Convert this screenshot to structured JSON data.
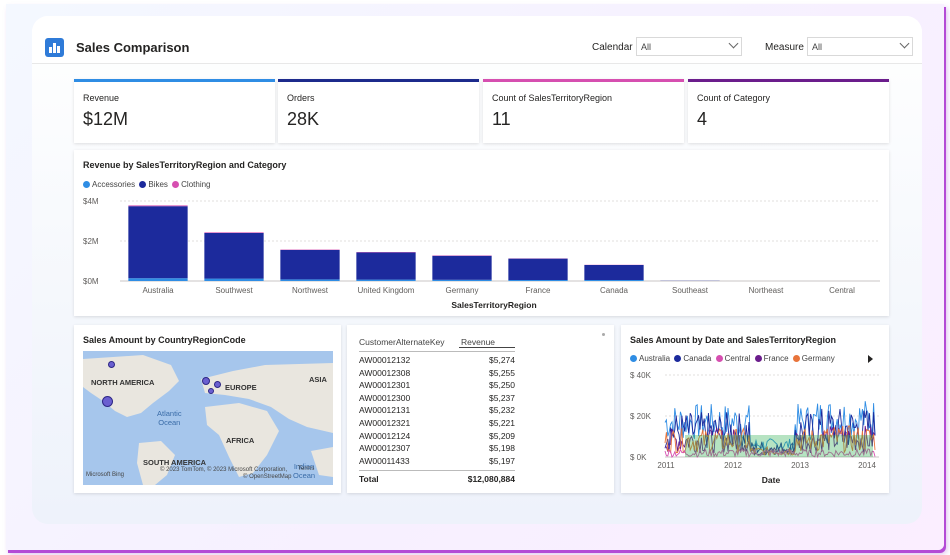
{
  "header": {
    "title": "Sales Comparison",
    "filters": [
      {
        "label": "Calendar",
        "value": "All"
      },
      {
        "label": "Measure",
        "value": "All"
      }
    ]
  },
  "kpis": [
    {
      "label": "Revenue",
      "value": "$12M",
      "color": "#2f8de4"
    },
    {
      "label": "Orders",
      "value": "28K",
      "color": "#1c2a8c"
    },
    {
      "label": "Count of SalesTerritoryRegion",
      "value": "11",
      "color": "#d64fb0"
    },
    {
      "label": "Count of Category",
      "value": "4",
      "color": "#6b1d8c"
    }
  ],
  "bar_chart": {
    "title": "Revenue by SalesTerritoryRegion and Category",
    "legend": [
      {
        "name": "Accessories",
        "color": "#2f8de4"
      },
      {
        "name": "Bikes",
        "color": "#1c2a9c"
      },
      {
        "name": "Clothing",
        "color": "#d64fb0"
      }
    ],
    "y_ticks": [
      "$4M",
      "$2M",
      "$0M"
    ],
    "xlabel": "SalesTerritoryRegion"
  },
  "map": {
    "title": "Sales Amount by CountryRegionCode",
    "labels": {
      "north_america": "NORTH AMERICA",
      "europe": "EUROPE",
      "asia": "ASIA",
      "africa": "AFRICA",
      "south_america": "SOUTH AMERICA",
      "ocean_line1": "Atlantic",
      "ocean_line2": "Ocean",
      "indian_line1": "Indian",
      "indian_line2": "Ocean"
    },
    "brand": "Microsoft Bing",
    "copyright": "© 2023 TomTom, © 2023 Microsoft Corporation,",
    "copyright2": "© OpenStreetMap",
    "terms": "Terms"
  },
  "table": {
    "col1": "CustomerAlternateKey",
    "col2": "Revenue",
    "rows": [
      {
        "key": "AW00012132",
        "revenue": "$5,274"
      },
      {
        "key": "AW00012308",
        "revenue": "$5,255"
      },
      {
        "key": "AW00012301",
        "revenue": "$5,250"
      },
      {
        "key": "AW00012300",
        "revenue": "$5,237"
      },
      {
        "key": "AW00012131",
        "revenue": "$5,232"
      },
      {
        "key": "AW00012321",
        "revenue": "$5,221"
      },
      {
        "key": "AW00012124",
        "revenue": "$5,209"
      },
      {
        "key": "AW00012307",
        "revenue": "$5,198"
      },
      {
        "key": "AW00011433",
        "revenue": "$5,197"
      }
    ],
    "total_label": "Total",
    "total_value": "$12,080,884"
  },
  "line_chart": {
    "title": "Sales Amount by Date and SalesTerritoryRegion",
    "legend": [
      {
        "name": "Australia",
        "color": "#2f8de4"
      },
      {
        "name": "Canada",
        "color": "#1c2a9c"
      },
      {
        "name": "Central",
        "color": "#d64fb0"
      },
      {
        "name": "France",
        "color": "#6b1d8c"
      },
      {
        "name": "Germany",
        "color": "#e8743b"
      }
    ],
    "y_ticks": [
      "$ 40K",
      "$ 20K",
      "$ 0K"
    ],
    "x_ticks": [
      "2011",
      "2012",
      "2013",
      "2014"
    ],
    "xlabel": "Date"
  },
  "chart_data": [
    {
      "type": "bar",
      "title": "Revenue by SalesTerritoryRegion and Category",
      "categories": [
        "Australia",
        "Southwest",
        "Northwest",
        "United Kingdom",
        "Germany",
        "France",
        "Canada",
        "Southeast",
        "Northeast",
        "Central"
      ],
      "series": [
        {
          "name": "Accessories",
          "values": [
            0.14,
            0.12,
            0.08,
            0.07,
            0.06,
            0.05,
            0.05,
            0.0,
            0.0,
            0.0
          ]
        },
        {
          "name": "Bikes",
          "values": [
            3.6,
            2.28,
            1.47,
            1.36,
            1.2,
            1.07,
            0.75,
            0.01,
            0.0,
            0.0
          ]
        },
        {
          "name": "Clothing",
          "values": [
            0.04,
            0.03,
            0.02,
            0.02,
            0.02,
            0.01,
            0.01,
            0.0,
            0.0,
            0.0
          ]
        }
      ],
      "ylim": [
        0,
        4
      ],
      "y_unit": "$M",
      "ylabel": "",
      "xlabel": "SalesTerritoryRegion",
      "legend_position": "top-left",
      "grid": true
    },
    {
      "type": "line",
      "title": "Sales Amount by Date and SalesTerritoryRegion",
      "x_range": [
        "2011",
        "2014"
      ],
      "ylim": [
        0,
        40
      ],
      "y_unit": "$K",
      "xlabel": "Date",
      "series": [
        {
          "name": "Australia",
          "approx_level": [
            8,
            26
          ]
        },
        {
          "name": "Canada",
          "approx_level": [
            3,
            22
          ]
        },
        {
          "name": "Central",
          "approx_level": [
            0,
            4
          ]
        },
        {
          "name": "France",
          "approx_level": [
            2,
            14
          ]
        },
        {
          "name": "Germany",
          "approx_level": [
            2,
            14
          ]
        }
      ],
      "legend_position": "top-left",
      "grid": true
    }
  ]
}
